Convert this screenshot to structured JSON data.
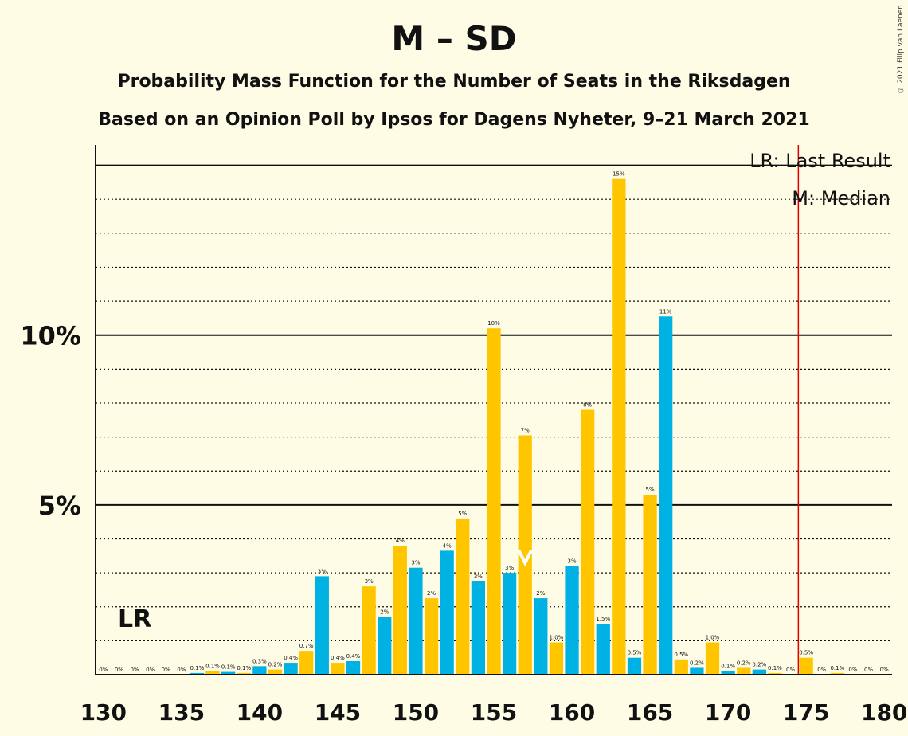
{
  "header": {
    "title": "M – SD",
    "subtitle": "Probability Mass Function for the Number of Seats in the Riksdagen",
    "subtitle2": "Based on an Opinion Poll by Ipsos for Dagens Nyheter, 9–21 March 2021",
    "copyright": "© 2021 Filip van Laenen"
  },
  "legend": {
    "lr": "LR: Last Result",
    "median": "M: Median"
  },
  "annotations": {
    "lr_marker": "LR"
  },
  "colors": {
    "cyan": "#00B2E3",
    "gold": "#FFC600",
    "red": "#E00000",
    "background": "#FFFCE6"
  },
  "chart_data": {
    "type": "bar",
    "x": [
      130,
      131,
      132,
      133,
      134,
      135,
      136,
      137,
      138,
      139,
      140,
      141,
      142,
      143,
      144,
      145,
      146,
      147,
      148,
      149,
      150,
      151,
      152,
      153,
      154,
      155,
      156,
      157,
      158,
      159,
      160,
      161,
      162,
      163,
      164,
      165,
      166,
      167,
      168,
      169,
      170,
      171,
      172,
      173,
      174,
      175,
      176,
      177,
      178,
      179,
      180
    ],
    "values": [
      0,
      0,
      0,
      0,
      0,
      0,
      0.05,
      0.1,
      0.08,
      0.05,
      0.25,
      0.15,
      0.35,
      0.7,
      2.9,
      0.35,
      0.4,
      2.6,
      1.7,
      3.8,
      3.15,
      2.25,
      3.65,
      4.6,
      2.75,
      10.2,
      3.0,
      7.05,
      2.25,
      0.95,
      3.2,
      7.8,
      1.5,
      14.6,
      0.5,
      5.3,
      10.55,
      0.45,
      0.2,
      0.95,
      0.1,
      0.2,
      0.15,
      0.05,
      0,
      0.5,
      0,
      0.05,
      0,
      0,
      0
    ],
    "labels": [
      "0%",
      "0%",
      "0%",
      "0%",
      "0%",
      "0%",
      "0.1%",
      "0.1%",
      "0.1%",
      "0.1%",
      "0.3%",
      "0.2%",
      "0.4%",
      "0.7%",
      "3%",
      "0.4%",
      "0.4%",
      "3%",
      "2%",
      "4%",
      "3%",
      "2%",
      "4%",
      "5%",
      "3%",
      "10%",
      "3%",
      "7%",
      "2%",
      "1.0%",
      "3%",
      "8%",
      "1.5%",
      "15%",
      "0.5%",
      "5%",
      "11%",
      "0.5%",
      "0.2%",
      "1.0%",
      "0.1%",
      "0.2%",
      "0.2%",
      "0.1%",
      "0%",
      "0.5%",
      "0%",
      "0.1%",
      "0%",
      "0%",
      "0%"
    ],
    "xticks": [
      "130",
      "135",
      "140",
      "145",
      "150",
      "155",
      "160",
      "165",
      "170",
      "175",
      "180"
    ],
    "yticks": [
      "5%",
      "10%"
    ],
    "ylim": [
      0,
      15.6
    ],
    "xlim": [
      129.5,
      180.5
    ],
    "last_result": 133,
    "median": 157,
    "majority_line": 174.5,
    "grid": true
  }
}
